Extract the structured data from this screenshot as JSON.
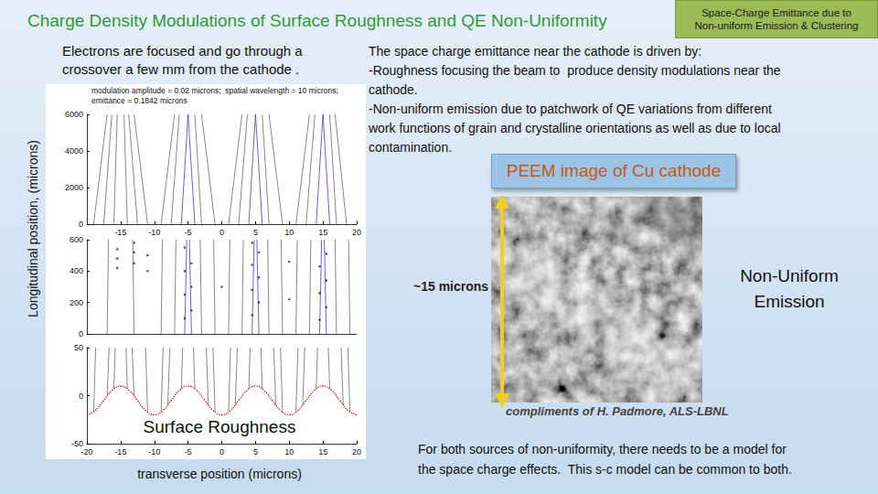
{
  "title": "Charge Density Modulations of Surface Roughness and QE Non-Uniformity",
  "corner_box": [
    "Space-Charge Emittance due to",
    "Non-uniform Emission & Clustering"
  ],
  "left_caption": [
    "Electrons are focused and go through a",
    "crossover a few mm from the cathode ."
  ],
  "y_axis_label": "Longitudinal position, (microns)",
  "x_axis_label": "transverse position (microns)",
  "surface_label": "Surface Roughness",
  "description": [
    "The space charge emittance near the cathode is driven by:",
    "-Roughness focusing the beam to  produce density modulations near the",
    "cathode.",
    "-Non-uniform emission due to patchwork of QE variations from different",
    "work functions of grain and crystalline orientations as well as due to local",
    "contamination."
  ],
  "image_caption": "PEEM image of Cu cathode",
  "scale_label": "~15 microns",
  "image_note": [
    "Non-Uniform",
    "Emission"
  ],
  "credit": "compliments of H. Padmore, ALS-LBNL",
  "conclusion": [
    "For both sources of non-uniformity, there needs to be a model for",
    "the space charge effects.  This s-c model can be common to both."
  ],
  "chart_data": [
    {
      "type": "lines",
      "title": "modulation amplitude = 0.02 microns;  spatial wavelength = 10 microns;",
      "subtitle": "emittance = 0.1842 microns",
      "xlim": [
        -20,
        20
      ],
      "xticks": [
        -15,
        -10,
        -5,
        0,
        5,
        10,
        15,
        20
      ],
      "ylim": [
        0,
        6000
      ],
      "yticks": [
        0,
        2000,
        4000,
        6000
      ],
      "grid": false,
      "series": [
        {
          "type": "lines",
          "color": "#555555",
          "line_style": "solid",
          "values": [
            [
              [
                -19,
                0
              ],
              [
                -17,
                6000
              ]
            ],
            [
              [
                -17.5,
                0
              ],
              [
                -16.3,
                6000
              ]
            ],
            [
              [
                -16,
                0
              ],
              [
                -15.5,
                6000
              ]
            ],
            [
              [
                -14,
                0
              ],
              [
                -14.5,
                6000
              ]
            ],
            [
              [
                -12.5,
                0
              ],
              [
                -13.8,
                6000
              ]
            ],
            [
              [
                -11,
                0
              ],
              [
                -13,
                6000
              ]
            ],
            [
              [
                -9,
                0
              ],
              [
                -7,
                6000
              ]
            ],
            [
              [
                -7.5,
                0
              ],
              [
                -6.3,
                6000
              ]
            ],
            [
              [
                -3,
                0
              ],
              [
                -4,
                6000
              ]
            ],
            [
              [
                -1,
                0
              ],
              [
                -3,
                6000
              ]
            ],
            [
              [
                1,
                0
              ],
              [
                3,
                6000
              ]
            ],
            [
              [
                2.5,
                0
              ],
              [
                3.8,
                6000
              ]
            ],
            [
              [
                7,
                0
              ],
              [
                6,
                6000
              ]
            ],
            [
              [
                9,
                0
              ],
              [
                7,
                6000
              ]
            ],
            [
              [
                11,
                0
              ],
              [
                13,
                6000
              ]
            ],
            [
              [
                12.5,
                0
              ],
              [
                13.8,
                6000
              ]
            ],
            [
              [
                17,
                0
              ],
              [
                16,
                6000
              ]
            ],
            [
              [
                18.5,
                0
              ],
              [
                16.8,
                6000
              ]
            ]
          ]
        },
        {
          "type": "lines",
          "color": "#1f1fd0",
          "line_style": "solid",
          "values": [
            [
              [
                -6,
                0
              ],
              [
                -5,
                6000
              ]
            ],
            [
              [
                -4,
                0
              ],
              [
                -5,
                6000
              ]
            ],
            [
              [
                4,
                0
              ],
              [
                5,
                6000
              ]
            ],
            [
              [
                6,
                0
              ],
              [
                5,
                6000
              ]
            ],
            [
              [
                14,
                0
              ],
              [
                15,
                6000
              ]
            ],
            [
              [
                16,
                0
              ],
              [
                15,
                6000
              ]
            ]
          ]
        }
      ]
    },
    {
      "type": "lines",
      "xlim": [
        -20,
        20
      ],
      "ylim": [
        0,
        600
      ],
      "yticks": [
        0,
        200,
        400,
        600
      ],
      "tick_labels": "y",
      "grid": false,
      "series": [
        {
          "type": "lines",
          "color": "#555555",
          "line_style": "solid",
          "values": [
            [
              [
                -17,
                0
              ],
              [
                -16.8,
                600
              ]
            ],
            [
              [
                -13,
                0
              ],
              [
                -13.2,
                600
              ]
            ],
            [
              [
                -9,
                0
              ],
              [
                -8.8,
                600
              ]
            ],
            [
              [
                -7,
                0
              ],
              [
                -6.8,
                600
              ]
            ],
            [
              [
                -3,
                0
              ],
              [
                -3.2,
                600
              ]
            ],
            [
              [
                -1,
                0
              ],
              [
                -1.2,
                600
              ]
            ],
            [
              [
                1,
                0
              ],
              [
                1.2,
                600
              ]
            ],
            [
              [
                3,
                0
              ],
              [
                3.2,
                600
              ]
            ],
            [
              [
                7,
                0
              ],
              [
                6.8,
                600
              ]
            ],
            [
              [
                9,
                0
              ],
              [
                8.8,
                600
              ]
            ],
            [
              [
                11,
                0
              ],
              [
                11.2,
                600
              ]
            ],
            [
              [
                13,
                0
              ],
              [
                13.2,
                600
              ]
            ],
            [
              [
                17,
                0
              ],
              [
                16.8,
                600
              ]
            ],
            [
              [
                19,
                0
              ],
              [
                18.8,
                600
              ]
            ]
          ]
        },
        {
          "type": "lines",
          "color": "#1f1fd0",
          "line_style": "solid",
          "values": [
            [
              [
                -5.5,
                0
              ],
              [
                -5.2,
                600
              ]
            ],
            [
              [
                -4.5,
                0
              ],
              [
                -4.8,
                600
              ]
            ],
            [
              [
                4.5,
                0
              ],
              [
                4.8,
                600
              ]
            ],
            [
              [
                5.5,
                0
              ],
              [
                5.2,
                600
              ]
            ],
            [
              [
                14.5,
                0
              ],
              [
                14.8,
                600
              ]
            ],
            [
              [
                15.5,
                0
              ],
              [
                15.2,
                600
              ]
            ]
          ]
        },
        {
          "type": "scatter",
          "color": "#222222",
          "marker": "circle",
          "values": [
            [
              -15.5,
              420
            ],
            [
              -15.5,
              480
            ],
            [
              -15.5,
              540
            ],
            [
              -13,
              450
            ],
            [
              -13,
              520
            ],
            [
              -13,
              580
            ],
            [
              -11,
              400
            ],
            [
              -11,
              500
            ],
            [
              -5.5,
              100
            ],
            [
              -5.5,
              250
            ],
            [
              -5.5,
              400
            ],
            [
              -5.5,
              550
            ],
            [
              -4.5,
              150
            ],
            [
              -4.5,
              300
            ],
            [
              -4.5,
              450
            ],
            [
              0,
              300
            ],
            [
              4.5,
              120
            ],
            [
              4.5,
              280
            ],
            [
              4.5,
              440
            ],
            [
              4.5,
              580
            ],
            [
              5.5,
              200
            ],
            [
              5.5,
              360
            ],
            [
              5.5,
              520
            ],
            [
              10,
              220
            ],
            [
              10,
              460
            ],
            [
              14.5,
              90
            ],
            [
              14.5,
              260
            ],
            [
              14.5,
              430
            ],
            [
              15.5,
              170
            ],
            [
              15.5,
              340
            ],
            [
              15.5,
              510
            ]
          ]
        }
      ]
    },
    {
      "type": "lines",
      "xlim": [
        -20,
        20
      ],
      "xticks": [
        -20,
        -15,
        -10,
        -5,
        0,
        5,
        10,
        15,
        20
      ],
      "ylim": [
        -50,
        50
      ],
      "yticks": [
        -50,
        0,
        50
      ],
      "grid": false,
      "series": [
        {
          "type": "lines",
          "color": "#555555",
          "line_style": "solid",
          "values": [
            [
              [
                -19,
                -17.1
              ],
              [
                -18.7,
                50
              ]
            ],
            [
              [
                -17,
                -0.4
              ],
              [
                -16.7,
                50
              ]
            ],
            [
              [
                -16,
                7.1
              ],
              [
                -15.8,
                50
              ]
            ],
            [
              [
                -14,
                7.1
              ],
              [
                -14.2,
                50
              ]
            ],
            [
              [
                -13,
                -0.4
              ],
              [
                -13.3,
                50
              ]
            ],
            [
              [
                -11,
                -17.1
              ],
              [
                -11.3,
                50
              ]
            ],
            [
              [
                -9,
                -17.1
              ],
              [
                -8.7,
                50
              ]
            ],
            [
              [
                -8,
                -9.6
              ],
              [
                -7.7,
                50
              ]
            ],
            [
              [
                -6,
                7.1
              ],
              [
                -5.8,
                50
              ]
            ],
            [
              [
                -4,
                7.1
              ],
              [
                -4.2,
                50
              ]
            ],
            [
              [
                -2,
                -9.6
              ],
              [
                -2.3,
                50
              ]
            ],
            [
              [
                -1,
                -17.1
              ],
              [
                -1.3,
                50
              ]
            ],
            [
              [
                1,
                -17.1
              ],
              [
                1.3,
                50
              ]
            ],
            [
              [
                2,
                -9.6
              ],
              [
                2.3,
                50
              ]
            ],
            [
              [
                4,
                7.1
              ],
              [
                4.2,
                50
              ]
            ],
            [
              [
                6,
                7.1
              ],
              [
                5.8,
                50
              ]
            ],
            [
              [
                8,
                -9.6
              ],
              [
                7.7,
                50
              ]
            ],
            [
              [
                9,
                -17.1
              ],
              [
                8.7,
                50
              ]
            ],
            [
              [
                11,
                -17.1
              ],
              [
                11.3,
                50
              ]
            ],
            [
              [
                12,
                -9.6
              ],
              [
                12.3,
                50
              ]
            ],
            [
              [
                14,
                7.1
              ],
              [
                14.2,
                50
              ]
            ],
            [
              [
                16,
                7.1
              ],
              [
                15.8,
                50
              ]
            ],
            [
              [
                18,
                -9.6
              ],
              [
                17.7,
                50
              ]
            ],
            [
              [
                19,
                -17.1
              ],
              [
                18.7,
                50
              ]
            ]
          ]
        },
        {
          "type": "line",
          "color": "#d01010",
          "line_style": "dotted",
          "values": [
            [
              -20,
              -20
            ],
            [
              -18.75,
              -15.6
            ],
            [
              -17.5,
              -5
            ],
            [
              -16.25,
              5.6
            ],
            [
              -15,
              10
            ],
            [
              -13.75,
              5.6
            ],
            [
              -12.5,
              -5
            ],
            [
              -11.25,
              -15.6
            ],
            [
              -10,
              -20
            ],
            [
              -8.75,
              -15.6
            ],
            [
              -7.5,
              -5
            ],
            [
              -6.25,
              5.6
            ],
            [
              -5,
              10
            ],
            [
              -3.75,
              5.6
            ],
            [
              -2.5,
              -5
            ],
            [
              -1.25,
              -15.6
            ],
            [
              0,
              -20
            ],
            [
              1.25,
              -15.6
            ],
            [
              2.5,
              -5
            ],
            [
              3.75,
              5.6
            ],
            [
              5,
              10
            ],
            [
              6.25,
              5.6
            ],
            [
              7.5,
              -5
            ],
            [
              8.75,
              -15.6
            ],
            [
              10,
              -20
            ],
            [
              11.25,
              -15.6
            ],
            [
              12.5,
              -5
            ],
            [
              13.75,
              5.6
            ],
            [
              15,
              10
            ],
            [
              16.25,
              5.6
            ],
            [
              17.5,
              -5
            ],
            [
              18.75,
              -15.6
            ],
            [
              20,
              -20
            ]
          ]
        }
      ]
    }
  ]
}
